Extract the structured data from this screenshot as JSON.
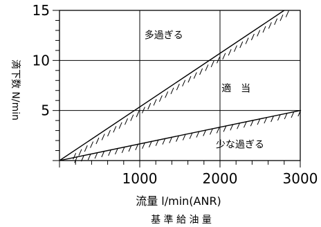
{
  "chart_data": {
    "type": "line",
    "xlabel": "流量 l/min(ANR)",
    "xlabel_sub": "基 準 給 油 量",
    "ylabel": "滴下数 N/min",
    "xlim": [
      0,
      3000
    ],
    "ylim": [
      0,
      15
    ],
    "x_ticks": [
      {
        "value": 1000,
        "label": "1000"
      },
      {
        "value": 2000,
        "label": "2000"
      },
      {
        "value": 3000,
        "label": "3000"
      }
    ],
    "y_ticks": [
      {
        "value": 5,
        "label": "5"
      },
      {
        "value": 10,
        "label": "10"
      },
      {
        "value": 15,
        "label": "15"
      }
    ],
    "grid": true,
    "series": [
      {
        "x": [
          0,
          2800
        ],
        "y": [
          0,
          15
        ]
      },
      {
        "x": [
          0,
          3000
        ],
        "y": [
          0,
          5
        ]
      }
    ],
    "region_labels": [
      {
        "text": "多過ぎる",
        "x": 1300,
        "y": 12.6
      },
      {
        "text": "適　当",
        "x": 2200,
        "y": 7.3
      },
      {
        "text": "少な過ぎる",
        "x": 2250,
        "y": 1.7
      }
    ]
  }
}
